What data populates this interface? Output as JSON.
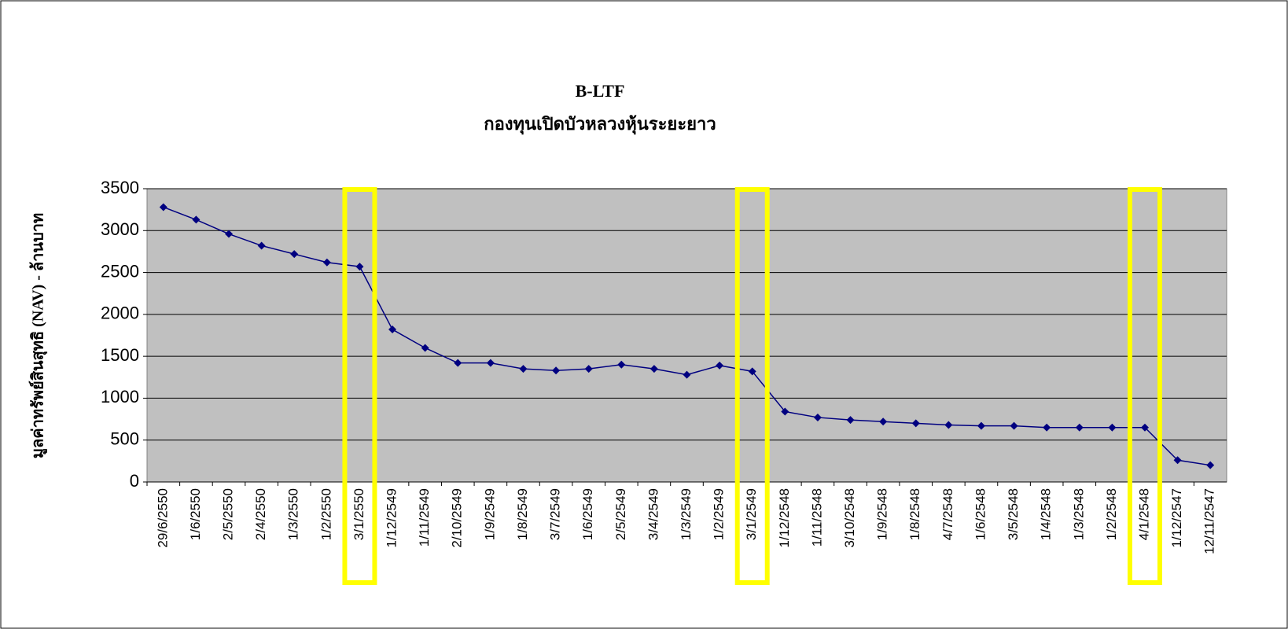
{
  "chart_data": {
    "type": "line",
    "title": "B-LTF",
    "subtitle": "กองทุนเปิดบัวหลวงหุ้นระยะยาว",
    "y_label": "มูลค่าทรัพย์สินสุทธิ (NAV) - ล้านบาท",
    "categories": [
      "29/6/2550",
      "1/6/2550",
      "2/5/2550",
      "2/4/2550",
      "1/3/2550",
      "1/2/2550",
      "3/1/2550",
      "1/12/2549",
      "1/11/2549",
      "2/10/2549",
      "1/9/2549",
      "1/8/2549",
      "3/7/2549",
      "1/6/2549",
      "2/5/2549",
      "3/4/2549",
      "1/3/2549",
      "1/2/2549",
      "3/1/2549",
      "1/12/2548",
      "1/11/2548",
      "3/10/2548",
      "1/9/2548",
      "1/8/2548",
      "4/7/2548",
      "1/6/2548",
      "3/5/2548",
      "1/4/2548",
      "1/3/2548",
      "1/2/2548",
      "4/1/2548",
      "1/12/2547",
      "12/11/2547"
    ],
    "values": [
      3280,
      3130,
      2960,
      2820,
      2720,
      2620,
      2570,
      1820,
      1600,
      1420,
      1420,
      1350,
      1330,
      1350,
      1400,
      1350,
      1280,
      1390,
      1320,
      840,
      770,
      740,
      720,
      700,
      680,
      670,
      670,
      650,
      650,
      650,
      650,
      260,
      200
    ],
    "color": "#000080",
    "plot_background": "#c0c0c0",
    "ylim": [
      0,
      3500
    ],
    "yticks": [
      0,
      500,
      1000,
      1500,
      2000,
      2500,
      3000,
      3500
    ],
    "grid": true
  }
}
